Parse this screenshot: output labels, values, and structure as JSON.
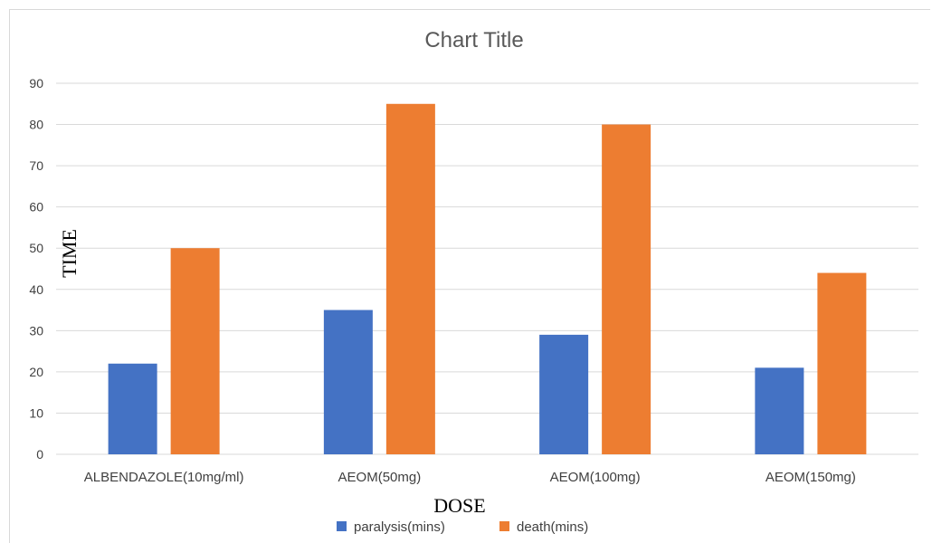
{
  "chart_data": {
    "type": "bar",
    "title": "Chart Title",
    "xlabel": "DOSE",
    "ylabel": "TIME",
    "categories": [
      "ALBENDAZOLE(10mg/ml)",
      "AEOM(50mg)",
      "AEOM(100mg)",
      "AEOM(150mg)"
    ],
    "series": [
      {
        "name": "paralysis(mins)",
        "values": [
          22,
          35,
          29,
          21
        ],
        "color": "#4472C4"
      },
      {
        "name": "death(mins)",
        "values": [
          50,
          85,
          80,
          44
        ],
        "color": "#ED7D31"
      }
    ],
    "ylim": [
      0,
      90
    ],
    "yticks": [
      0,
      10,
      20,
      30,
      40,
      50,
      60,
      70,
      80,
      90
    ],
    "grid": true,
    "legend_position": "bottom"
  }
}
